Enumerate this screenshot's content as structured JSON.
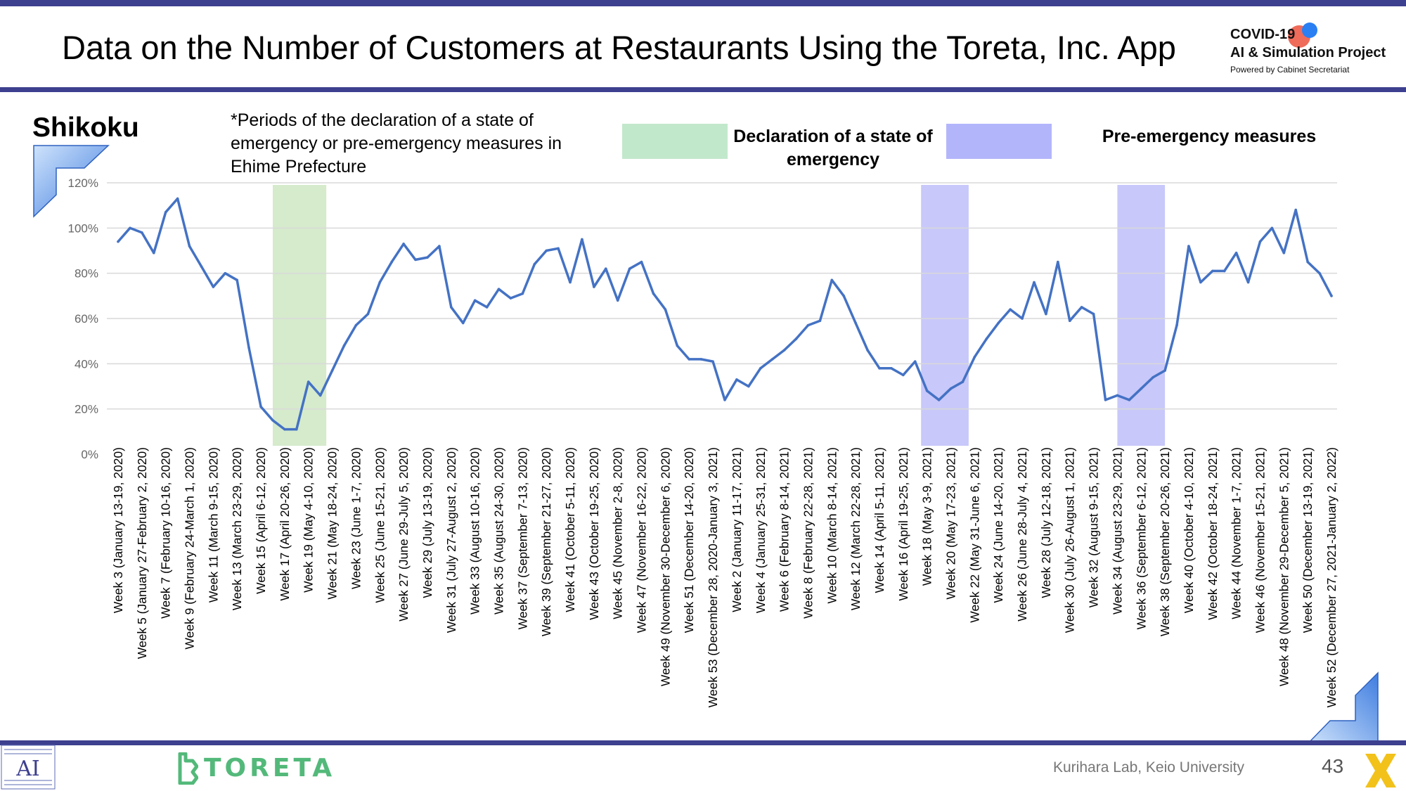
{
  "slide": {
    "title": "Data on the Number of Customers at Restaurants Using the Toreta, Inc. App",
    "logo_line1": "COVID-19",
    "logo_line2": "AI & Simulation Project",
    "logo_line3": "Powered by Cabinet Secretariat",
    "region": "Shikoku",
    "periods_note": "*Periods of the declaration of a state of emergency or pre-emergency measures in Ehime Prefecture",
    "legend_emergency": "Declaration of a state of emergency",
    "legend_pre_emergency": "Pre-emergency measures",
    "brand": "TORETA",
    "credit": "Kurihara Lab, Keio University",
    "page_number": "43"
  },
  "colors": {
    "line": "#4472c4",
    "emergency_band": "#d5ebcc",
    "pre_emergency_band": "#c8c8fa",
    "frame": "#3d3f8f"
  },
  "chart_data": {
    "type": "line",
    "title": "",
    "xlabel": "",
    "ylabel": "",
    "ylim": [
      0,
      120
    ],
    "y_ticks": [
      "0%",
      "20%",
      "40%",
      "60%",
      "80%",
      "100%",
      "120%"
    ],
    "grid": true,
    "series": [
      {
        "name": "",
        "values": [
          94,
          100,
          98,
          89,
          107,
          113,
          92,
          83,
          74,
          80,
          77,
          47,
          21,
          15,
          11,
          11,
          32,
          26,
          37,
          48,
          57,
          62,
          76,
          85,
          93,
          86,
          87,
          92,
          65,
          58,
          68,
          65,
          73,
          69,
          71,
          84,
          90,
          91,
          76,
          95,
          74,
          82,
          68,
          82,
          85,
          71,
          64,
          48,
          42,
          42,
          41,
          24,
          33,
          30,
          38,
          42,
          46,
          51,
          57,
          59,
          77,
          70,
          58,
          46,
          38,
          38,
          35,
          41,
          28,
          24,
          29,
          32,
          43,
          51,
          58,
          64,
          60,
          76,
          62,
          85,
          59,
          65,
          62,
          24,
          26,
          24,
          29,
          34,
          37,
          57,
          92,
          76,
          81,
          81,
          89,
          76,
          94,
          100,
          89,
          108,
          85,
          80,
          70
        ]
      }
    ],
    "x_labels": [
      "Week 3 (January 13-19, 2020)",
      "Week 5 (January 27-February 2, 2020)",
      "Week 7 (February 10-16, 2020)",
      "Week 9 (February 24-March 1, 2020)",
      "Week 11 (March 9-15, 2020)",
      "Week 13 (March 23-29, 2020)",
      "Week 15 (April 6-12, 2020)",
      "Week 17 (April 20-26, 2020)",
      "Week 19 (May 4-10, 2020)",
      "Week 21 (May 18-24, 2020)",
      "Week 23 (June 1-7, 2020)",
      "Week 25 (June 15-21, 2020)",
      "Week 27 (June 29-July 5, 2020)",
      "Week 29 (July 13-19, 2020)",
      "Week 31 (July 27-August 2, 2020)",
      "Week 33 (August 10-16, 2020)",
      "Week 35 (August 24-30, 2020)",
      "Week 37 (September 7-13, 2020)",
      "Week 39 (September 21-27, 2020)",
      "Week 41 (October 5-11, 2020)",
      "Week 43 (October 19-25, 2020)",
      "Week 45 (November 2-8, 2020)",
      "Week 47 (November 16-22, 2020)",
      "Week 49 (November 30-December 6, 2020)",
      "Week 51 (December 14-20, 2020)",
      "Week 53 (December 28, 2020-January 3, 2021)",
      "Week 2 (January 11-17, 2021)",
      "Week 4 (January 25-31, 2021)",
      "Week 6 (February 8-14, 2021)",
      "Week 8 (February 22-28, 2021)",
      "Week 10 (March 8-14, 2021)",
      "Week 12 (March 22-28, 2021)",
      "Week 14 (April 5-11, 2021)",
      "Week 16 (April 19-25, 2021)",
      "Week 18 (May 3-9, 2021)",
      "Week 20 (May 17-23, 2021)",
      "Week 22 (May 31-June 6, 2021)",
      "Week 24 (June 14-20, 2021)",
      "Week 26 (June 28-July 4, 2021)",
      "Week 28 (July 12-18, 2021)",
      "Week 30 (July 26-August 1, 2021)",
      "Week 32 (August 9-15, 2021)",
      "Week 34 (August 23-29, 2021)",
      "Week 36 (September 6-12, 2021)",
      "Week 38 (September 20-26, 2021)",
      "Week 40 (October 4-10, 2021)",
      "Week 42 (October 18-24, 2021)",
      "Week 44 (November 1-7, 2021)",
      "Week 46 (November 15-21, 2021)",
      "Week 48 (November 29-December 5, 2021)",
      "Week 50 (December 13-19, 2021)",
      "Week 52 (December 27, 2021-January 2, 2022)"
    ],
    "label_every": 2,
    "bands": [
      {
        "kind": "emergency",
        "start_index": 13,
        "end_index": 17.5
      },
      {
        "kind": "pre_emergency",
        "start_index": 67.5,
        "end_index": 71.5
      },
      {
        "kind": "pre_emergency",
        "start_index": 84,
        "end_index": 88
      }
    ]
  }
}
